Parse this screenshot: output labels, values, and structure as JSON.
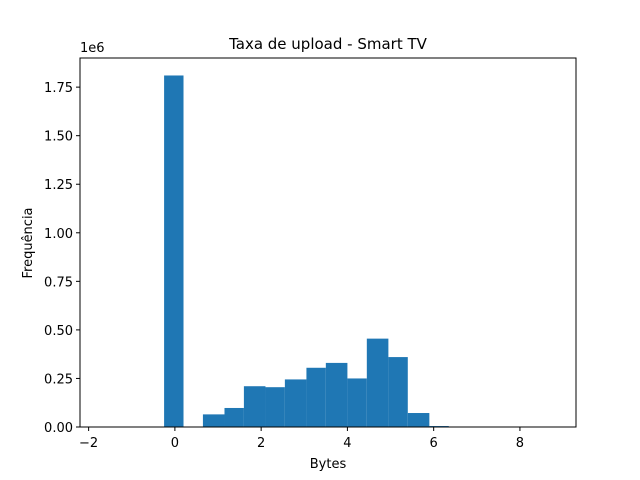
{
  "chart_data": {
    "type": "bar",
    "title": "Taxa de upload - Smart TV",
    "xlabel": "Bytes",
    "ylabel": "Frequência",
    "y_offset_label": "1e6",
    "xlim": [
      -2.2,
      9.3
    ],
    "ylim": [
      0,
      1900000
    ],
    "x_ticks": [
      -2,
      0,
      2,
      4,
      6,
      8
    ],
    "x_tick_labels": [
      "−2",
      "0",
      "2",
      "4",
      "6",
      "8"
    ],
    "y_ticks": [
      0,
      250000,
      500000,
      750000,
      1000000,
      1250000,
      1500000,
      1750000
    ],
    "y_tick_labels": [
      "0.00",
      "0.25",
      "0.50",
      "0.75",
      "1.00",
      "1.25",
      "1.50",
      "1.75"
    ],
    "bar_color": "#1f77b4",
    "grid": false,
    "bins": [
      {
        "x0": -0.25,
        "x1": 0.2,
        "value": 1810000
      },
      {
        "x0": 0.65,
        "x1": 1.15,
        "value": 65000
      },
      {
        "x0": 1.15,
        "x1": 1.6,
        "value": 98000
      },
      {
        "x0": 1.6,
        "x1": 2.1,
        "value": 210000
      },
      {
        "x0": 2.1,
        "x1": 2.55,
        "value": 205000
      },
      {
        "x0": 2.55,
        "x1": 3.05,
        "value": 245000
      },
      {
        "x0": 3.05,
        "x1": 3.5,
        "value": 305000
      },
      {
        "x0": 3.5,
        "x1": 4.0,
        "value": 330000
      },
      {
        "x0": 4.0,
        "x1": 4.45,
        "value": 250000
      },
      {
        "x0": 4.45,
        "x1": 4.95,
        "value": 455000
      },
      {
        "x0": 4.95,
        "x1": 5.4,
        "value": 360000
      },
      {
        "x0": 5.4,
        "x1": 5.9,
        "value": 72000
      },
      {
        "x0": 5.9,
        "x1": 6.35,
        "value": 5000
      }
    ]
  }
}
